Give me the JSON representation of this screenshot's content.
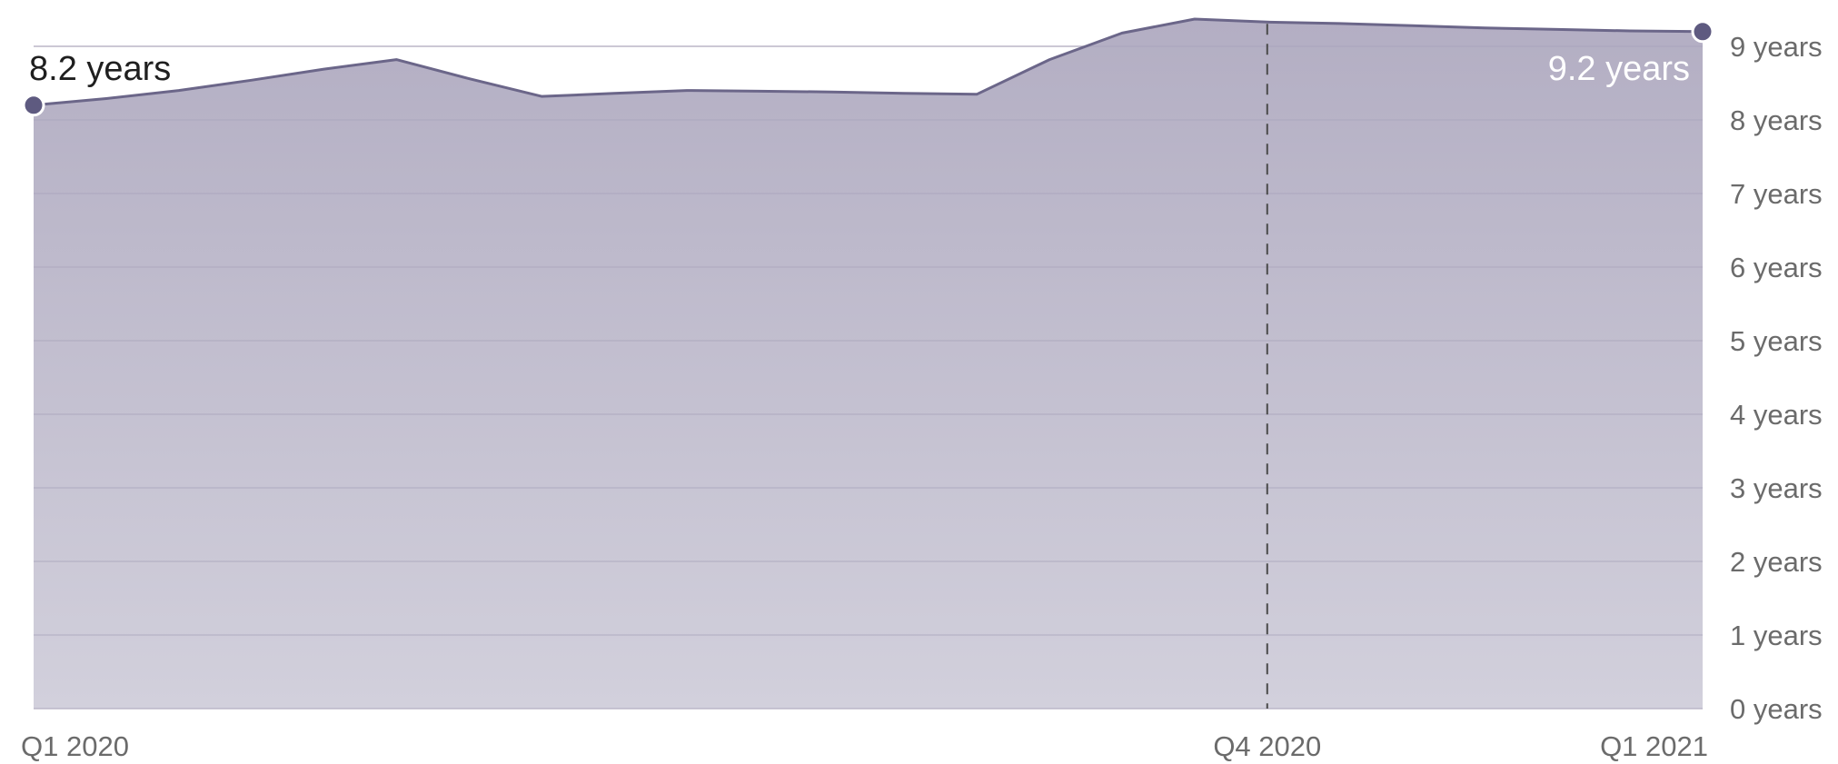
{
  "chart_data": {
    "type": "area",
    "title": "",
    "xlabel": "",
    "ylabel": "",
    "ylim": [
      0,
      9
    ],
    "grid": true,
    "y_ticks": [
      {
        "value": 0,
        "label": "0 years"
      },
      {
        "value": 1,
        "label": "1 years"
      },
      {
        "value": 2,
        "label": "2 years"
      },
      {
        "value": 3,
        "label": "3 years"
      },
      {
        "value": 4,
        "label": "4 years"
      },
      {
        "value": 5,
        "label": "5 years"
      },
      {
        "value": 6,
        "label": "6 years"
      },
      {
        "value": 7,
        "label": "7 years"
      },
      {
        "value": 8,
        "label": "8 years"
      },
      {
        "value": 9,
        "label": "9 years"
      }
    ],
    "x_labels": [
      {
        "label": "Q1 2020",
        "index": 0
      },
      {
        "label": "Q4 2020",
        "index": 17
      },
      {
        "label": "Q1 2021",
        "index": 23
      }
    ],
    "reference_line": {
      "index": 17,
      "label": "Q4 2020"
    },
    "series": [
      {
        "values": [
          8.2,
          8.29,
          8.4,
          8.54,
          8.69,
          8.82,
          8.56,
          8.32,
          8.36,
          8.4,
          8.39,
          8.38,
          8.36,
          8.35,
          8.82,
          9.18,
          9.37,
          9.33,
          9.31,
          9.28,
          9.25,
          9.23,
          9.21,
          9.2
        ],
        "start_label": "8.2 years",
        "end_label": "9.2 years"
      }
    ],
    "colors": {
      "line": "#6b6689",
      "fill_top": "#b3aec3",
      "fill_bottom": "#d2d0dc",
      "marker": "#5e5a80",
      "grid": "#d9d3de",
      "axis_text": "#6b6b6b",
      "end_label_text": "#ffffff",
      "start_label_text": "#1f1f1f"
    }
  }
}
